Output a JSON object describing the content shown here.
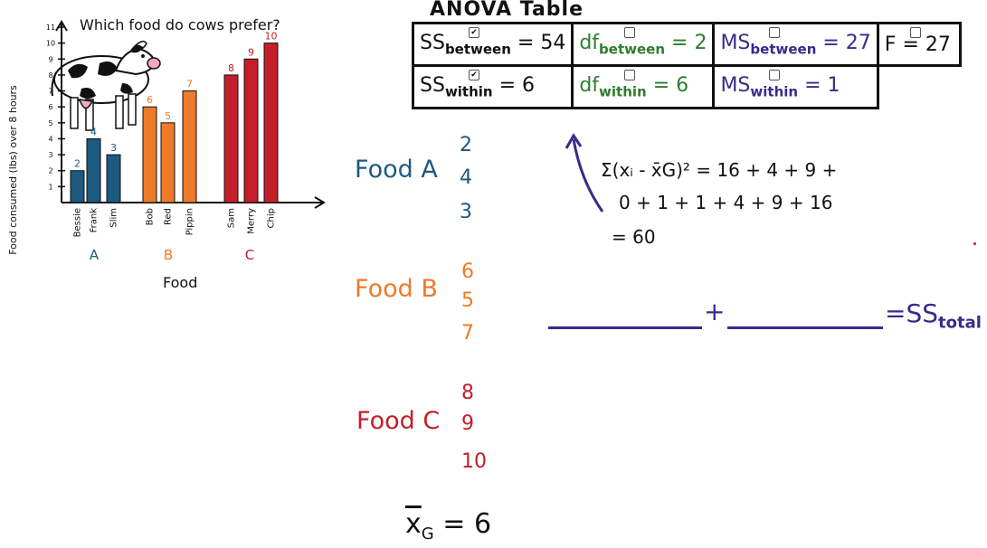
{
  "chart_data": {
    "type": "bar",
    "title": "Which food do cows prefer?",
    "xlabel": "Food",
    "ylabel": "Food consumed (lbs) over 8 hours",
    "ylim": [
      0,
      11
    ],
    "yticks": [
      "1",
      "2",
      "3",
      "4",
      "5",
      "6",
      "7",
      "8",
      "9",
      "10",
      "11"
    ],
    "groups": [
      "A",
      "B",
      "C"
    ],
    "categories": [
      "Bessie",
      "Frank",
      "Slim",
      "Bob",
      "Red",
      "Pippin",
      "Sam",
      "Merry",
      "Chip"
    ],
    "group_of": [
      "A",
      "A",
      "A",
      "B",
      "B",
      "B",
      "C",
      "C",
      "C"
    ],
    "values": [
      2,
      4,
      3,
      6,
      5,
      7,
      8,
      9,
      10
    ],
    "group_colors": {
      "A": "#1c5a80",
      "B": "#ee7a2a",
      "C": "#c41e2a"
    }
  },
  "anova": {
    "title": "ANOVA Table",
    "rows": [
      {
        "ss_label": "SS",
        "ss_sub": "between",
        "ss_val": "= 54",
        "df_label": "df",
        "df_sub": "between",
        "df_val": "= 2",
        "ms_label": "MS",
        "ms_sub": "between",
        "ms_val": "= 27",
        "f_label": "F",
        "f_val": "= 27"
      },
      {
        "ss_label": "SS",
        "ss_sub": "within",
        "ss_val": "= 6",
        "df_label": "df",
        "df_sub": "within",
        "df_val": "= 6",
        "ms_label": "MS",
        "ms_sub": "within",
        "ms_val": "= 1"
      }
    ],
    "checkbox_glyph": "✔"
  },
  "foods": [
    {
      "label": "Food A",
      "values": [
        "2",
        "4",
        "3"
      ]
    },
    {
      "label": "Food B",
      "values": [
        "6",
        "5",
        "7"
      ]
    },
    {
      "label": "Food C",
      "values": [
        "8",
        "9",
        "10"
      ]
    }
  ],
  "formula": {
    "line1": "Σ(xᵢ - x̄G)² = 16 + 4 + 9 +",
    "line2": "0 + 1 + 1 + 4 + 9 + 16",
    "line3": "= 60"
  },
  "sum_eq": {
    "plus": "+",
    "equals": "=",
    "total_label": "SS",
    "total_sub": "total"
  },
  "grand_mean": {
    "symbol": "x",
    "sub": "G",
    "value": "= 6"
  },
  "colors": {
    "blue": "#1c5a80",
    "orange": "#ee7a2a",
    "red": "#c41e2a",
    "green": "#2e7d2e",
    "purple": "#3a2a8a"
  }
}
